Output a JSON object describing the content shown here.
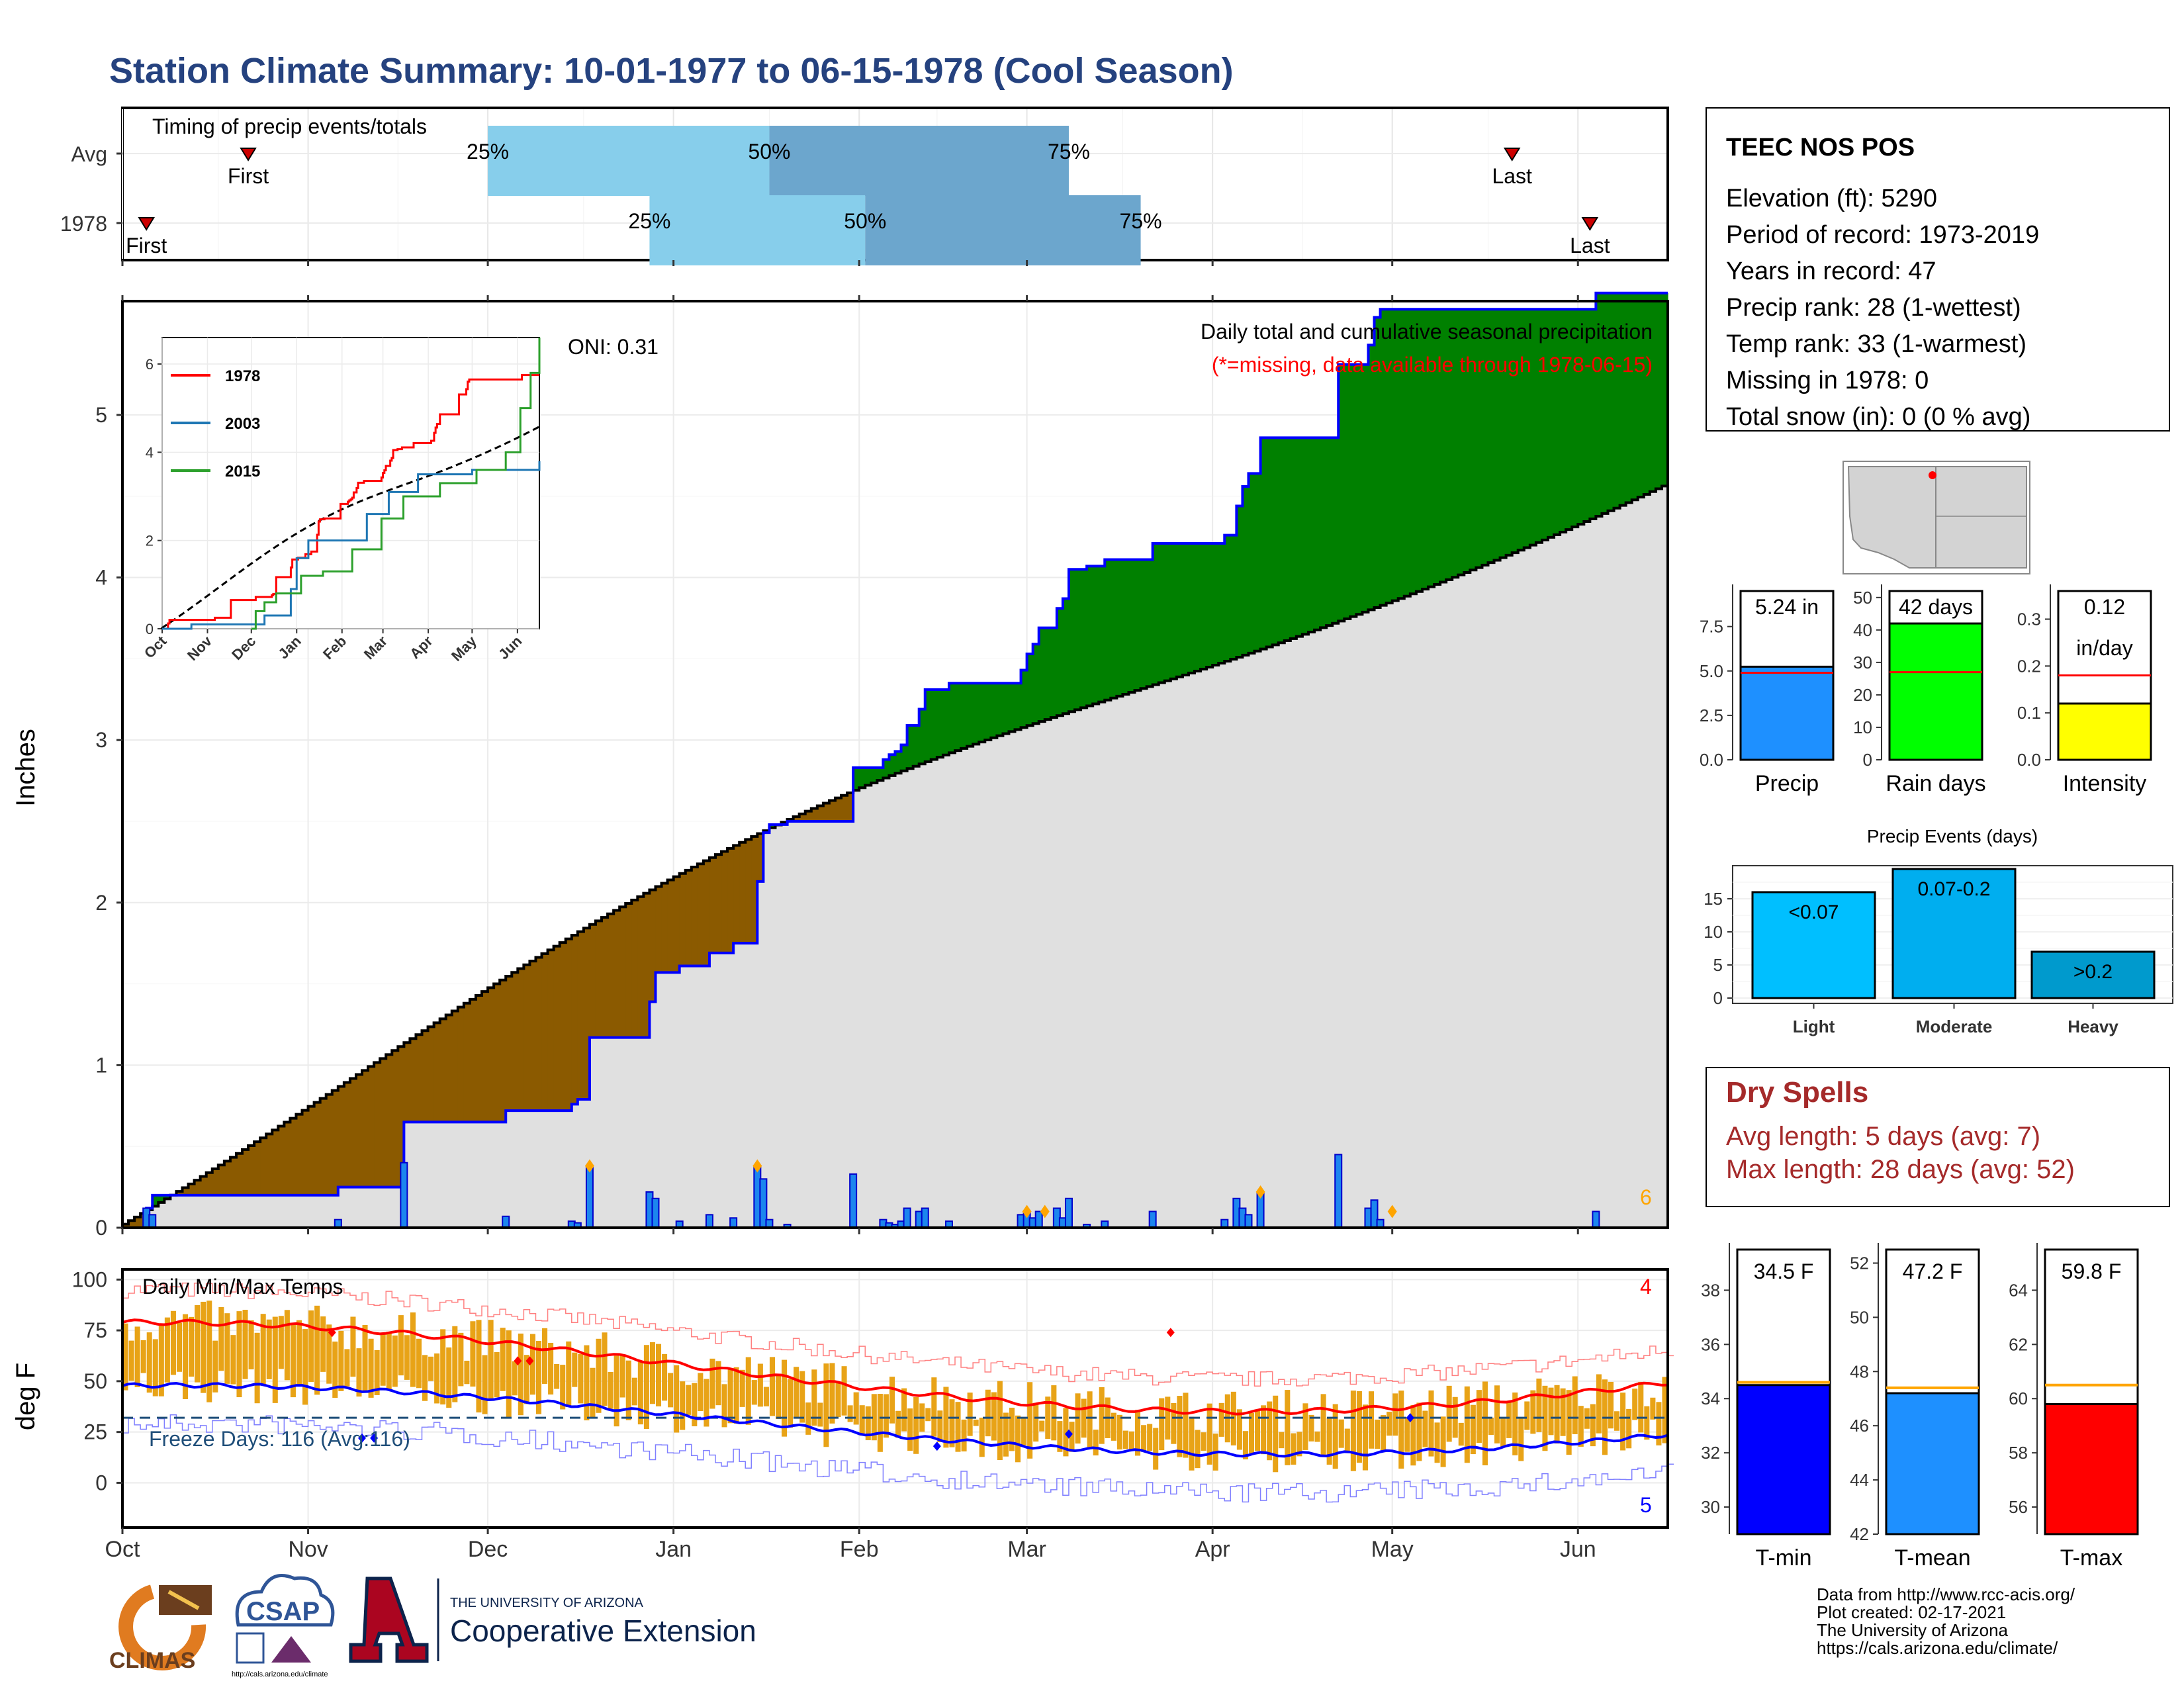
{
  "title": "Station Climate Summary: 10-01-1977 to 06-15-1978 (Cool Season)",
  "colors": {
    "title": "#25427F",
    "q_light": "#87CEEB",
    "q_dark": "#6CA6CD",
    "surplus": "#008000",
    "deficit": "#8B5A00",
    "avg_fill": "#E0E0E0",
    "obs_line": "#0000FF",
    "precip_bar": "#1C86EE",
    "temp_bar": "#E8A317",
    "tmax_avg": "#FF0000",
    "tmin_avg": "#0000FF",
    "red": "#FF0000"
  },
  "timing": {
    "title": "Timing of precip events/totals",
    "rows": [
      {
        "label": "Avg",
        "first": "10-22",
        "p25": "12-01",
        "p50": "01-17",
        "p75": "03-08",
        "last": "05-21"
      },
      {
        "label": "1978",
        "first": "10-05",
        "p25": "12-28",
        "p50": "02-02",
        "p75": "03-20",
        "last": "06-03"
      }
    ],
    "labels": {
      "first": "First",
      "last": "Last",
      "p25": "25%",
      "p50": "50%",
      "p75": "75%"
    }
  },
  "station": {
    "name": "TEEC NOS POS",
    "lines": [
      "Elevation (ft): 5290",
      "Period of record: 1973-2019",
      "Years in record: 47",
      "Precip rank: 28 (1-wettest)",
      "Temp rank: 33 (1-warmest)",
      "Missing in 1978: 0",
      "Total snow (in): 0 (0 % avg)"
    ]
  },
  "precip_chart": {
    "ylabel": "Inches",
    "title": "Daily total and cumulative seasonal precipitation",
    "missing_note": "(*=missing, data available through 1978-06-15)",
    "oni": "ONI: 0.31",
    "corner_count": "6",
    "ylim": [
      0,
      5.7
    ],
    "yticks": [
      0,
      1,
      2,
      3,
      4,
      5
    ],
    "months": [
      "Oct",
      "Nov",
      "Dec",
      "Jan",
      "Feb",
      "Mar",
      "Apr",
      "May",
      "Jun"
    ],
    "days_total": 258,
    "avg_total": 4.58,
    "daily": [
      {
        "day": 4,
        "v": 0.12
      },
      {
        "day": 5,
        "v": 0.08
      },
      {
        "day": 36,
        "v": 0.05
      },
      {
        "day": 47,
        "v": 0.4
      },
      {
        "day": 64,
        "v": 0.07
      },
      {
        "day": 75,
        "v": 0.04
      },
      {
        "day": 76,
        "v": 0.03
      },
      {
        "day": 78,
        "v": 0.38
      },
      {
        "day": 88,
        "v": 0.22
      },
      {
        "day": 89,
        "v": 0.18
      },
      {
        "day": 93,
        "v": 0.04
      },
      {
        "day": 98,
        "v": 0.08
      },
      {
        "day": 102,
        "v": 0.06
      },
      {
        "day": 106,
        "v": 0.38
      },
      {
        "day": 107,
        "v": 0.3
      },
      {
        "day": 108,
        "v": 0.05
      },
      {
        "day": 111,
        "v": 0.02
      },
      {
        "day": 122,
        "v": 0.33
      },
      {
        "day": 127,
        "v": 0.05
      },
      {
        "day": 128,
        "v": 0.03
      },
      {
        "day": 129,
        "v": 0.02
      },
      {
        "day": 130,
        "v": 0.04
      },
      {
        "day": 131,
        "v": 0.12
      },
      {
        "day": 133,
        "v": 0.1
      },
      {
        "day": 134,
        "v": 0.12
      },
      {
        "day": 138,
        "v": 0.04
      },
      {
        "day": 150,
        "v": 0.08
      },
      {
        "day": 151,
        "v": 0.1
      },
      {
        "day": 152,
        "v": 0.06
      },
      {
        "day": 153,
        "v": 0.1
      },
      {
        "day": 156,
        "v": 0.12
      },
      {
        "day": 157,
        "v": 0.06
      },
      {
        "day": 158,
        "v": 0.18
      },
      {
        "day": 161,
        "v": 0.02
      },
      {
        "day": 164,
        "v": 0.04
      },
      {
        "day": 172,
        "v": 0.1
      },
      {
        "day": 184,
        "v": 0.05
      },
      {
        "day": 186,
        "v": 0.18
      },
      {
        "day": 187,
        "v": 0.12
      },
      {
        "day": 188,
        "v": 0.08
      },
      {
        "day": 190,
        "v": 0.22
      },
      {
        "day": 203,
        "v": 0.45
      },
      {
        "day": 208,
        "v": 0.12
      },
      {
        "day": 209,
        "v": 0.17
      },
      {
        "day": 210,
        "v": 0.05
      },
      {
        "day": 246,
        "v": 0.1
      }
    ],
    "flag_days": [
      78,
      106,
      151,
      154,
      190,
      212
    ],
    "inset": {
      "yticks": [
        0,
        2,
        4,
        6
      ],
      "ylim": [
        0,
        6.6
      ],
      "months": [
        "Oct",
        "Nov",
        "Dec",
        "Jan",
        "Feb",
        "Mar",
        "Apr",
        "May",
        "Jun"
      ],
      "series": [
        {
          "name": "1978",
          "color": "#FF0000"
        },
        {
          "name": "2003",
          "color": "#1F77B4"
        },
        {
          "name": "2015",
          "color": "#2CA02C"
        }
      ]
    }
  },
  "small_bars": [
    {
      "label": "Precip",
      "value_text": "5.24 in",
      "value": 5.24,
      "avg": 4.9,
      "ymax": 9.5,
      "ticks": [
        "0.0",
        "2.5",
        "5.0",
        "7.5"
      ],
      "tickvals": [
        0,
        2.5,
        5,
        7.5
      ],
      "color": "#1E90FF"
    },
    {
      "label": "Rain days",
      "value_text": "42 days",
      "value": 42,
      "avg": 27,
      "ymax": 52,
      "ticks": [
        "0",
        "10",
        "20",
        "30",
        "40",
        "50"
      ],
      "tickvals": [
        0,
        10,
        20,
        30,
        40,
        50
      ],
      "color": "#00FF00"
    },
    {
      "label": "Intensity",
      "value_text": "0.12",
      "value_text2": "in/day",
      "value": 0.12,
      "avg": 0.18,
      "ymax": 0.36,
      "ticks": [
        "0.0",
        "0.1",
        "0.2",
        "0.3"
      ],
      "tickvals": [
        0,
        0.1,
        0.2,
        0.3
      ],
      "color": "#FFFF00"
    }
  ],
  "events": {
    "title": "Precip Events (days)",
    "ymax": 20,
    "ticks": [
      0,
      5,
      10,
      15
    ],
    "bars": [
      {
        "label": "Light",
        "inner": "<0.07",
        "value": 16,
        "color": "#00BFFF"
      },
      {
        "label": "Moderate",
        "inner": "0.07-0.2",
        "value": 19.5,
        "color": "#00AEEF"
      },
      {
        "label": "Heavy",
        "inner": ">0.2",
        "value": 7,
        "color": "#009ACD"
      }
    ]
  },
  "dry_spells": {
    "title": "Dry Spells",
    "line1": "Avg length: 5 days (avg: 7)",
    "line2": "Max length: 28 days (avg: 52)"
  },
  "temp_chart": {
    "ylabel": "deg F",
    "title": "Daily Min/Max Temps",
    "freeze": "Freeze Days: 116 (Avg:116)",
    "freeze_line": 32,
    "ylim": [
      -22,
      105
    ],
    "yticks": [
      0,
      25,
      50,
      75,
      100
    ],
    "top_count": "4",
    "bottom_count": "5"
  },
  "temp_bars": [
    {
      "label": "T-min",
      "value_text": "34.5 F",
      "value": 34.5,
      "avg": 34.6,
      "ymin": 29,
      "ymax": 39.5,
      "tickvals": [
        30,
        32,
        34,
        36,
        38
      ],
      "color": "#0000FF"
    },
    {
      "label": "T-mean",
      "value_text": "47.2 F",
      "value": 47.2,
      "avg": 47.4,
      "ymin": 42,
      "ymax": 52.5,
      "tickvals": [
        42,
        44,
        46,
        48,
        50,
        52
      ],
      "color": "#1E90FF"
    },
    {
      "label": "T-max",
      "value_text": "59.8 F",
      "value": 59.8,
      "avg": 60.5,
      "ymin": 55,
      "ymax": 65.5,
      "tickvals": [
        56,
        58,
        60,
        62,
        64
      ],
      "color": "#FF0000"
    }
  ],
  "footer": {
    "lines": [
      "Data from http://www.rcc-acis.org/",
      "Plot created: 02-17-2021",
      "The University of Arizona",
      "https://cals.arizona.edu/climate/"
    ],
    "climas": "CLIMAS",
    "csap": "CSAP",
    "csap_url": "http://cals.arizona.edu/climate",
    "ua_line1": "THE UNIVERSITY OF ARIZONA",
    "ua_line2": "Cooperative Extension"
  }
}
